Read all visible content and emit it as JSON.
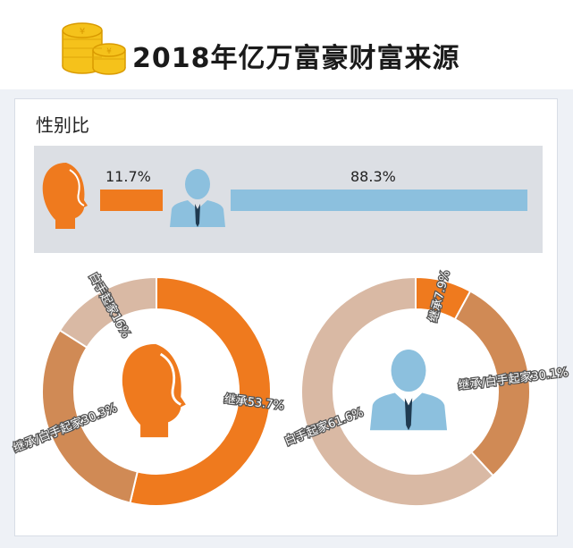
{
  "title": "2018年亿万富豪财富来源",
  "section_label": "性别比",
  "colors": {
    "female": "#ef7a1e",
    "male": "#8cc0de",
    "inherit_self": "#d08a55",
    "self_made": "#d9b9a4"
  },
  "chart_data": [
    {
      "type": "bar",
      "categories": [
        "female",
        "male"
      ],
      "values": [
        11.7,
        88.3
      ],
      "value_labels": [
        "11.7%",
        "88.3%"
      ]
    },
    {
      "type": "pie",
      "group": "female",
      "slices": [
        {
          "label": "继承53.7%",
          "value": 53.7
        },
        {
          "label": "继承/白手起家30.3%",
          "value": 30.3
        },
        {
          "label": "白手起家16%",
          "value": 16
        }
      ]
    },
    {
      "type": "pie",
      "group": "male",
      "slices": [
        {
          "label": "继承7.9%",
          "value": 7.9
        },
        {
          "label": "继承/白手起家30.1%",
          "value": 30.1
        },
        {
          "label": "白手起家61.6%",
          "value": 61.6
        }
      ]
    }
  ]
}
